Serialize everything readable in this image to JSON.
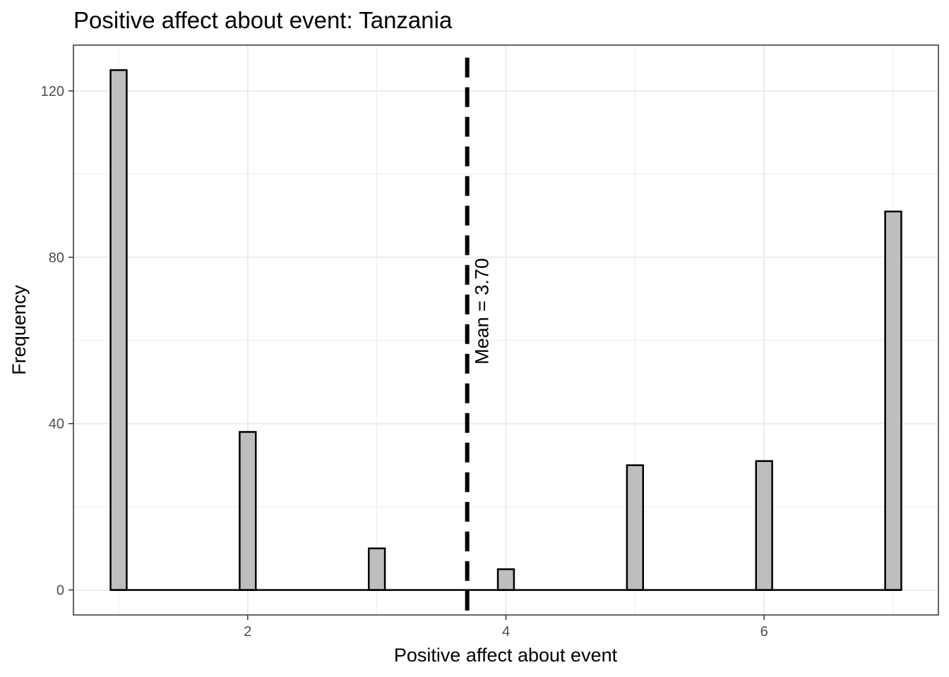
{
  "chart_data": {
    "type": "bar",
    "title": "Positive affect about event: Tanzania",
    "xlabel": "Positive affect about event",
    "ylabel": "Frequency",
    "x": [
      1,
      2,
      3,
      4,
      5,
      6,
      7
    ],
    "values": [
      125,
      38,
      10,
      5,
      30,
      31,
      91
    ],
    "xlim": [
      0.65,
      7.35
    ],
    "ylim": [
      -6,
      131
    ],
    "x_ticks": [
      2,
      4,
      6
    ],
    "y_ticks": [
      0,
      40,
      80,
      120
    ],
    "x_tick_labels": [
      "2",
      "4",
      "6"
    ],
    "y_tick_labels": [
      "0",
      "40",
      "80",
      "120"
    ],
    "grid": true,
    "legend": "none",
    "bar_fill": "#bebebe",
    "bar_stroke": "#000000",
    "mean": 3.7,
    "mean_label": "Mean = 3.70",
    "mean_line_color": "#000000"
  }
}
